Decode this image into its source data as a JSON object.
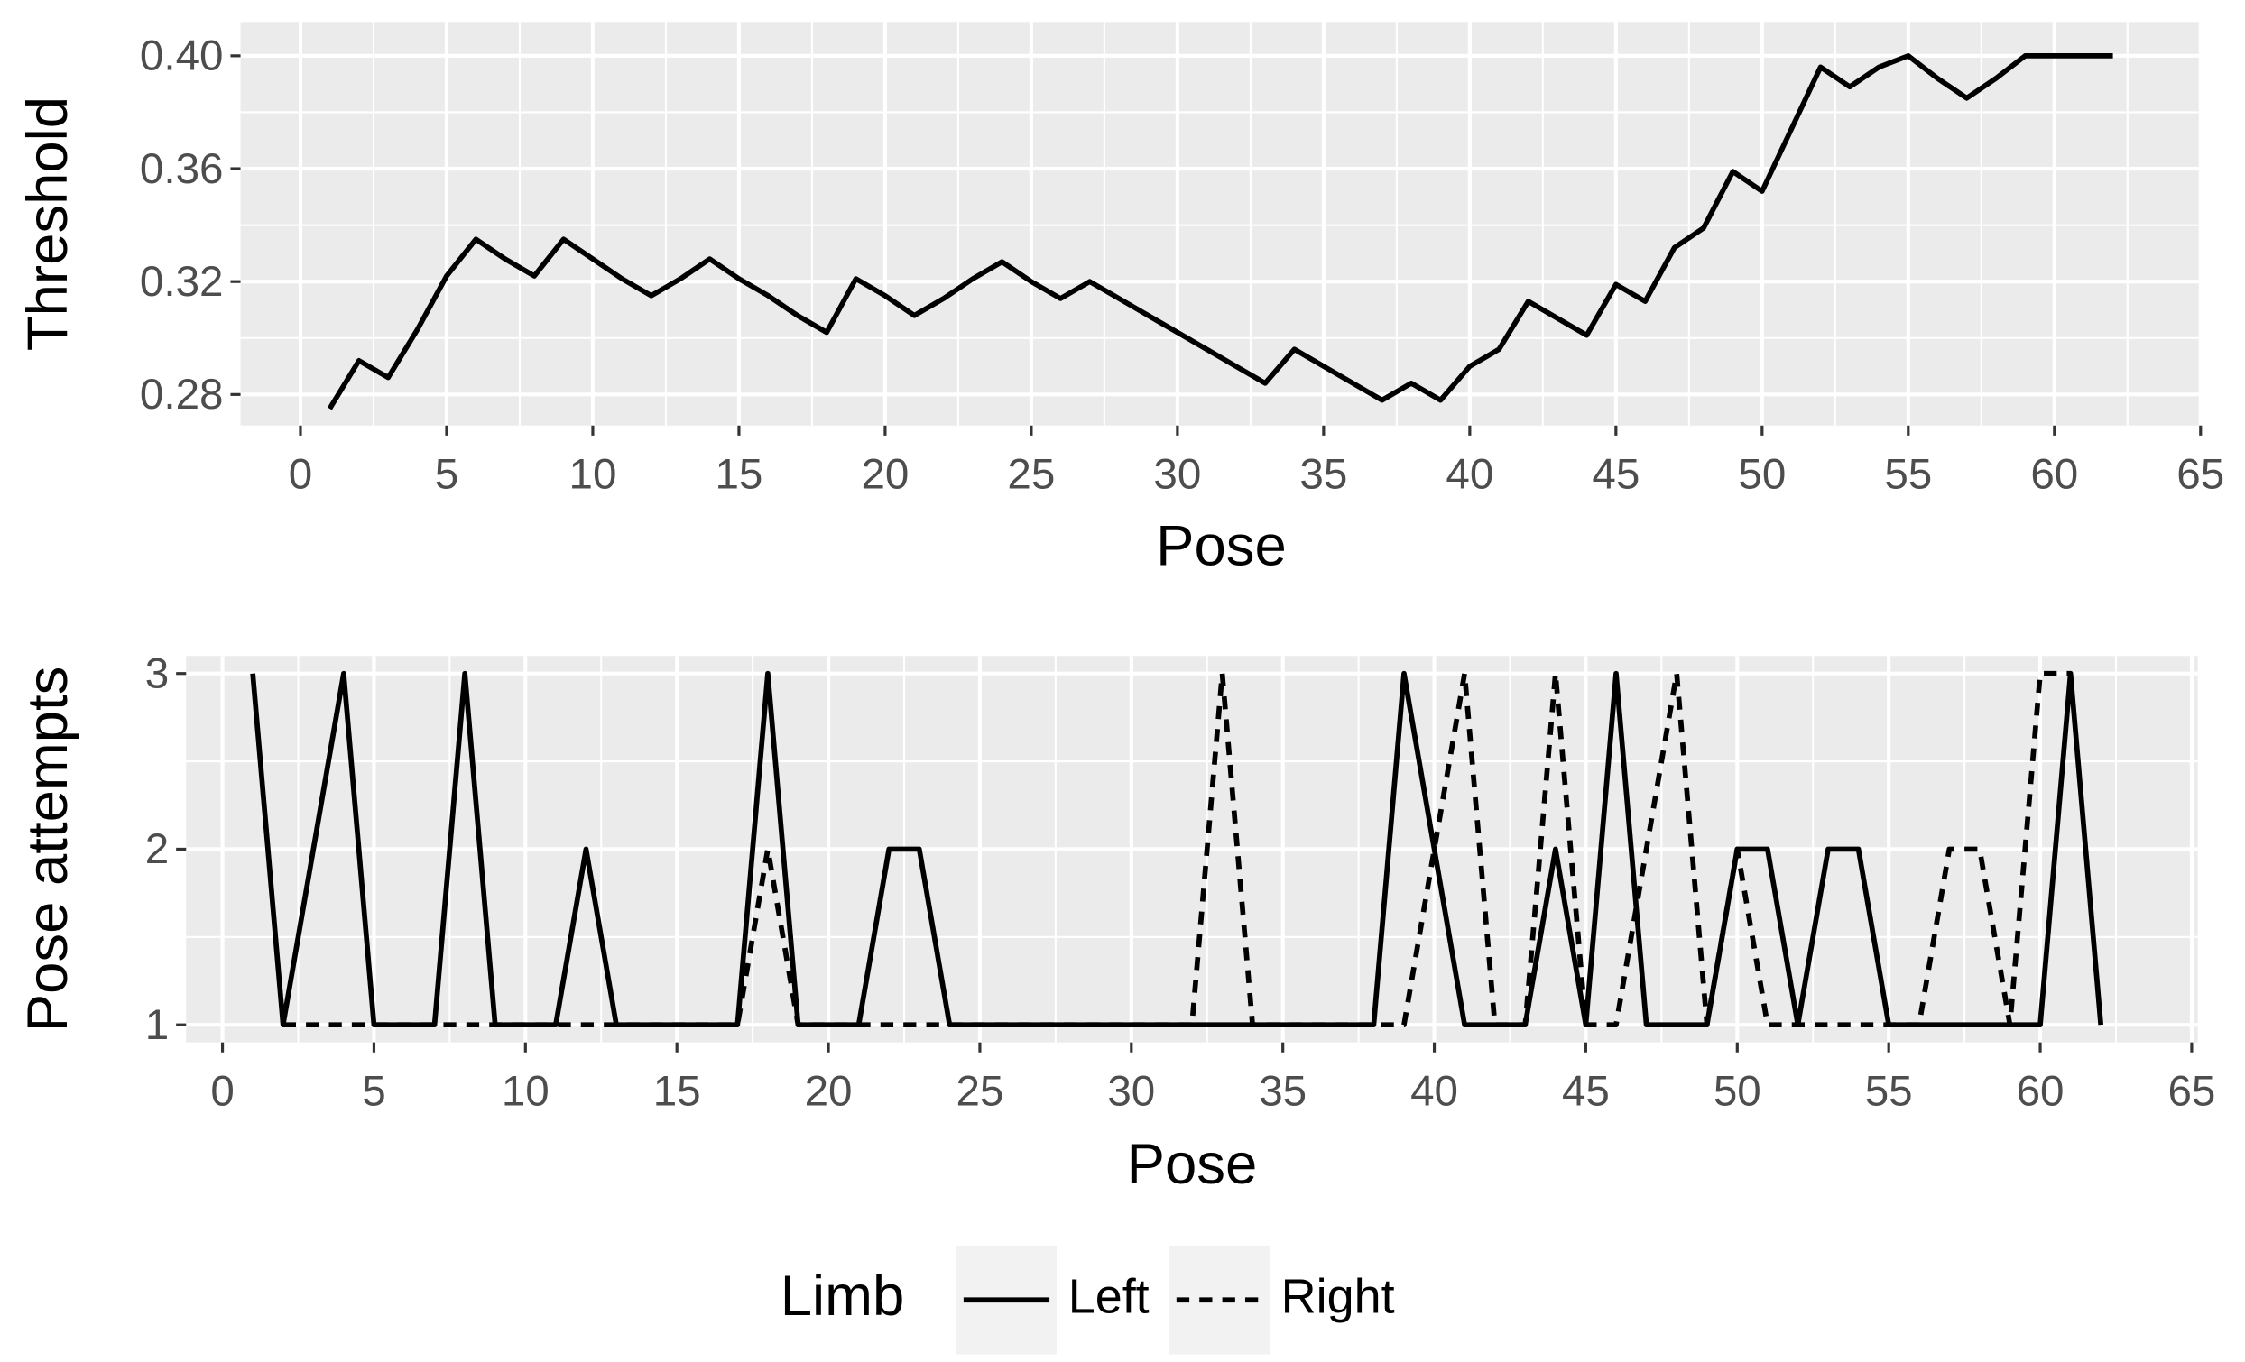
{
  "chart_data": [
    {
      "type": "line",
      "xlabel": "Pose",
      "ylabel": "Threshold",
      "grid": true,
      "x": [
        1,
        2,
        3,
        4,
        5,
        6,
        7,
        8,
        9,
        10,
        11,
        12,
        13,
        14,
        15,
        16,
        17,
        18,
        19,
        20,
        21,
        22,
        23,
        24,
        25,
        26,
        27,
        28,
        29,
        30,
        31,
        32,
        33,
        34,
        35,
        36,
        37,
        38,
        39,
        40,
        41,
        42,
        43,
        44,
        45,
        46,
        47,
        48,
        49,
        50,
        51,
        52,
        53,
        54,
        55,
        56,
        57,
        58,
        59,
        60,
        61,
        62
      ],
      "values": [
        0.275,
        0.292,
        0.286,
        0.303,
        0.322,
        0.335,
        0.328,
        0.322,
        0.335,
        0.328,
        0.321,
        0.315,
        0.321,
        0.328,
        0.321,
        0.315,
        0.308,
        0.302,
        0.321,
        0.315,
        0.308,
        0.314,
        0.321,
        0.327,
        0.32,
        0.314,
        0.32,
        0.314,
        0.308,
        0.302,
        0.296,
        0.29,
        0.284,
        0.296,
        0.29,
        0.284,
        0.278,
        0.284,
        0.278,
        0.29,
        0.296,
        0.313,
        0.307,
        0.301,
        0.319,
        0.313,
        0.332,
        0.339,
        0.359,
        0.352,
        0.374,
        0.396,
        0.389,
        0.396,
        0.4,
        0.392,
        0.385,
        0.392,
        0.4,
        0.4,
        0.4,
        0.4
      ],
      "color": "#000000",
      "linetype": "solid",
      "xlim": [
        -2.05,
        65.05
      ],
      "xticks": [
        0,
        5,
        10,
        15,
        20,
        25,
        30,
        35,
        40,
        45,
        50,
        55,
        60,
        65
      ],
      "ylim": [
        0.269,
        0.412
      ],
      "yticks": [
        0.28,
        0.32,
        0.36,
        {
          "value": 0.4,
          "label": "0.40"
        }
      ]
    },
    {
      "type": "line",
      "xlabel": "Pose",
      "ylabel": "Pose attempts",
      "grid": true,
      "legend": "bottom",
      "legend_title": "Limb",
      "x": [
        1,
        2,
        3,
        4,
        5,
        6,
        7,
        8,
        9,
        10,
        11,
        12,
        13,
        14,
        15,
        16,
        17,
        18,
        19,
        20,
        21,
        22,
        23,
        24,
        25,
        26,
        27,
        28,
        29,
        30,
        31,
        32,
        33,
        34,
        35,
        36,
        37,
        38,
        39,
        40,
        41,
        42,
        43,
        44,
        45,
        46,
        47,
        48,
        49,
        50,
        51,
        52,
        53,
        54,
        55,
        56,
        57,
        58,
        59,
        60,
        61,
        62
      ],
      "series": [
        {
          "name": "Left",
          "color": "#000000",
          "linetype": "solid",
          "values": [
            3,
            1,
            2,
            3,
            1,
            1,
            1,
            3,
            1,
            1,
            1,
            2,
            1,
            1,
            1,
            1,
            1,
            3,
            1,
            1,
            1,
            2,
            2,
            1,
            1,
            1,
            1,
            1,
            1,
            1,
            1,
            1,
            1,
            1,
            1,
            1,
            1,
            1,
            3,
            2,
            1,
            1,
            1,
            2,
            1,
            3,
            1,
            1,
            1,
            2,
            2,
            1,
            2,
            2,
            1,
            1,
            1,
            1,
            1,
            1,
            3,
            1
          ]
        },
        {
          "name": "Right",
          "color": "#000000",
          "linetype": "dashed",
          "values": [
            null,
            1,
            1,
            1,
            1,
            1,
            1,
            1,
            1,
            1,
            1,
            1,
            1,
            1,
            1,
            1,
            1,
            2,
            1,
            1,
            1,
            1,
            1,
            1,
            1,
            1,
            1,
            1,
            1,
            1,
            1,
            1,
            3,
            1,
            1,
            1,
            1,
            1,
            1,
            2,
            3,
            1,
            1,
            3,
            1,
            1,
            2,
            3,
            1,
            2,
            1,
            1,
            1,
            1,
            1,
            1,
            2,
            2,
            1,
            3,
            3,
            null
          ]
        }
      ],
      "xlim": [
        -1.2,
        65.2
      ],
      "xticks": [
        0,
        5,
        10,
        15,
        20,
        25,
        30,
        35,
        40,
        45,
        50,
        55,
        60,
        65
      ],
      "ylim": [
        0.9,
        3.1
      ],
      "yticks": [
        1,
        2,
        3
      ]
    }
  ]
}
